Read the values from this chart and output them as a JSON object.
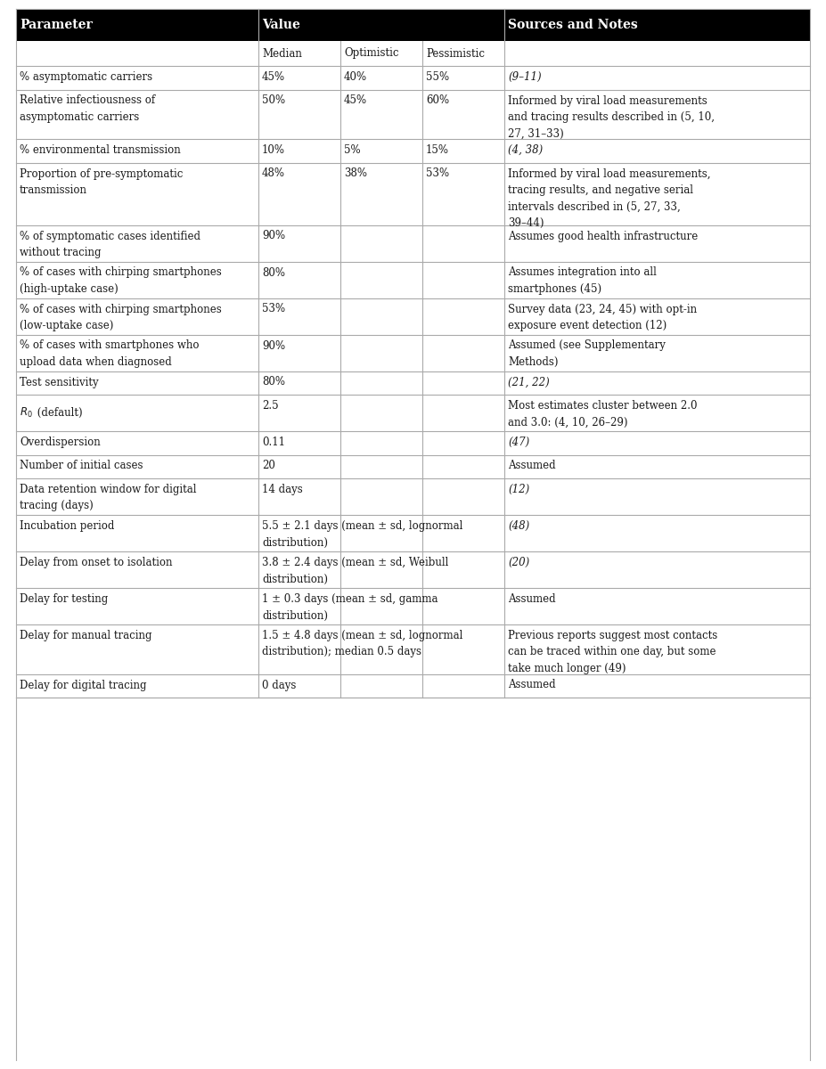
{
  "header_bg": "#000000",
  "header_text_color": "#ffffff",
  "border_color": "#aaaaaa",
  "text_color": "#1a1a1a",
  "orange_color": "#c86400",
  "figw": 9.27,
  "figh": 12.0,
  "rows": [
    {
      "param": "% asymptomatic carriers",
      "median": "45%",
      "optimistic": "40%",
      "pessimistic": "55%",
      "notes": "(9–11)",
      "notes_parts": [
        {
          "text": "(9–11)",
          "italic": true
        }
      ],
      "value_orange": false,
      "nlines_param": 1,
      "nlines_val": 1,
      "nlines_notes": 1
    },
    {
      "param": "Relative infectiousness of\nasymptomatic carriers",
      "median": "50%",
      "optimistic": "45%",
      "pessimistic": "60%",
      "notes": "Informed by viral load measurements\nand tracing results described in (5, 10,\n27, 31–33)",
      "notes_parts": [
        {
          "text": "Informed by viral load measurements\nand tracing results described in (",
          "italic": false
        },
        {
          "text": "5, 10,\n27, 31–33",
          "italic": true
        },
        {
          "text": ")",
          "italic": false
        }
      ],
      "value_orange": false,
      "nlines_param": 2,
      "nlines_val": 1,
      "nlines_notes": 3
    },
    {
      "param": "% environmental transmission",
      "median": "10%",
      "optimistic": "5%",
      "pessimistic": "15%",
      "notes": "(4, 38)",
      "notes_parts": [
        {
          "text": "(4, 38)",
          "italic": true
        }
      ],
      "value_orange": false,
      "nlines_param": 1,
      "nlines_val": 1,
      "nlines_notes": 1
    },
    {
      "param": "Proportion of pre-symptomatic\ntransmission",
      "median": "48%",
      "optimistic": "38%",
      "pessimistic": "53%",
      "notes": "Informed by viral load measurements,\ntracing results, and negative serial\nintervals described in (5, 27, 33,\n39–44)",
      "notes_parts": [
        {
          "text": "Informed by viral load measurements,\ntracing results, and negative serial\nintervals described in (",
          "italic": false
        },
        {
          "text": "5, 27, 33,\n39–44",
          "italic": true
        },
        {
          "text": ")",
          "italic": false
        }
      ],
      "value_orange": false,
      "nlines_param": 2,
      "nlines_val": 1,
      "nlines_notes": 4
    },
    {
      "param": "% of symptomatic cases identified\nwithout tracing",
      "median": "90%",
      "optimistic": "",
      "pessimistic": "",
      "notes": "Assumes good health infrastructure",
      "notes_parts": [
        {
          "text": "Assumes good health infrastructure",
          "italic": false
        }
      ],
      "value_orange": false,
      "nlines_param": 2,
      "nlines_val": 1,
      "nlines_notes": 1
    },
    {
      "param": "% of cases with chirping smartphones\n(high-uptake case)",
      "median": "80%",
      "optimistic": "",
      "pessimistic": "",
      "notes": "Assumes integration into all\nsmartphones (45)",
      "notes_parts": [
        {
          "text": "Assumes integration into all\nsmartphones (",
          "italic": false
        },
        {
          "text": "45",
          "italic": true
        },
        {
          "text": ")",
          "italic": false
        }
      ],
      "value_orange": false,
      "nlines_param": 2,
      "nlines_val": 1,
      "nlines_notes": 2
    },
    {
      "param": "% of cases with chirping smartphones\n(low-uptake case)",
      "median": "53%",
      "optimistic": "",
      "pessimistic": "",
      "notes": "Survey data (23, 24, 45) with opt-in\nexposure event detection (12)",
      "notes_parts": [
        {
          "text": "Survey data (",
          "italic": false
        },
        {
          "text": "23, 24, 45",
          "italic": true
        },
        {
          "text": ") with opt-in\nexposure event detection (",
          "italic": false
        },
        {
          "text": "12",
          "italic": true
        },
        {
          "text": ")",
          "italic": false
        }
      ],
      "value_orange": false,
      "nlines_param": 2,
      "nlines_val": 1,
      "nlines_notes": 2
    },
    {
      "param": "% of cases with smartphones who\nupload data when diagnosed",
      "median": "90%",
      "optimistic": "",
      "pessimistic": "",
      "notes": "Assumed (see Supplementary\nMethods)",
      "notes_parts": [
        {
          "text": "Assumed (see Supplementary\nMethods)",
          "italic": false
        }
      ],
      "value_orange": false,
      "nlines_param": 2,
      "nlines_val": 1,
      "nlines_notes": 2
    },
    {
      "param": "Test sensitivity",
      "median": "80%",
      "optimistic": "",
      "pessimistic": "",
      "notes": "(21, 22)",
      "notes_parts": [
        {
          "text": "(21, 22)",
          "italic": true
        }
      ],
      "value_orange": false,
      "nlines_param": 1,
      "nlines_val": 1,
      "nlines_notes": 1
    },
    {
      "param": "R₀ (default)",
      "median": "2.5",
      "optimistic": "",
      "pessimistic": "",
      "notes": "Most estimates cluster between 2.0\nand 3.0: (4, 10, 26–29)",
      "notes_parts": [
        {
          "text": "Most estimates cluster between 2.0\nand 3.0: (",
          "italic": false
        },
        {
          "text": "4, 10, 26–29",
          "italic": true
        },
        {
          "text": ")",
          "italic": false
        }
      ],
      "value_orange": false,
      "nlines_param": 1,
      "nlines_val": 1,
      "nlines_notes": 2,
      "param_r0": true
    },
    {
      "param": "Overdispersion",
      "median": "0.11",
      "optimistic": "",
      "pessimistic": "",
      "notes": "(47)",
      "notes_parts": [
        {
          "text": "(47)",
          "italic": true
        }
      ],
      "value_orange": false,
      "nlines_param": 1,
      "nlines_val": 1,
      "nlines_notes": 1
    },
    {
      "param": "Number of initial cases",
      "median": "20",
      "optimistic": "",
      "pessimistic": "",
      "notes": "Assumed",
      "notes_parts": [
        {
          "text": "Assumed",
          "italic": false
        }
      ],
      "value_orange": false,
      "nlines_param": 1,
      "nlines_val": 1,
      "nlines_notes": 1
    },
    {
      "param": "Data retention window for digital\ntracing (days)",
      "median": "14 days",
      "optimistic": "",
      "pessimistic": "",
      "notes": "(12)",
      "notes_parts": [
        {
          "text": "(12)",
          "italic": true
        }
      ],
      "value_orange": false,
      "nlines_param": 2,
      "nlines_val": 1,
      "nlines_notes": 1
    },
    {
      "param": "Incubation period",
      "median": "5.5 ± 2.1 days (mean ± sd, lognormal\ndistribution)",
      "optimistic": "",
      "pessimistic": "",
      "notes": "(48)",
      "notes_parts": [
        {
          "text": "(48)",
          "italic": true
        }
      ],
      "value_orange": false,
      "nlines_param": 1,
      "nlines_val": 2,
      "nlines_notes": 1
    },
    {
      "param": "Delay from onset to isolation",
      "median": "3.8 ± 2.4 days (mean ± sd, Weibull\ndistribution)",
      "optimistic": "",
      "pessimistic": "",
      "notes": "(20)",
      "notes_parts": [
        {
          "text": "(20)",
          "italic": true
        }
      ],
      "value_orange": false,
      "nlines_param": 1,
      "nlines_val": 2,
      "nlines_notes": 1
    },
    {
      "param": "Delay for testing",
      "median": "1 ± 0.3 days (mean ± sd, gamma\ndistribution)",
      "optimistic": "",
      "pessimistic": "",
      "notes": "Assumed",
      "notes_parts": [
        {
          "text": "Assumed",
          "italic": false
        }
      ],
      "value_orange": false,
      "nlines_param": 1,
      "nlines_val": 2,
      "nlines_notes": 1
    },
    {
      "param": "Delay for manual tracing",
      "median": "1.5 ± 4.8 days (mean ± sd, lognormal\ndistribution); median 0.5 days",
      "optimistic": "",
      "pessimistic": "",
      "notes": "Previous reports suggest most contacts\ncan be traced within one day, but some\ntake much longer (49)",
      "notes_parts": [
        {
          "text": "Previous reports suggest most contacts\ncan be traced within one day, but some\ntake much longer (",
          "italic": false
        },
        {
          "text": "49",
          "italic": true
        },
        {
          "text": ")",
          "italic": false
        }
      ],
      "value_orange": false,
      "nlines_param": 1,
      "nlines_val": 2,
      "nlines_notes": 3
    },
    {
      "param": "Delay for digital tracing",
      "median": "0 days",
      "optimistic": "",
      "pessimistic": "",
      "notes": "Assumed",
      "notes_parts": [
        {
          "text": "Assumed",
          "italic": false
        }
      ],
      "value_orange": false,
      "nlines_param": 1,
      "nlines_val": 1,
      "nlines_notes": 1
    }
  ]
}
